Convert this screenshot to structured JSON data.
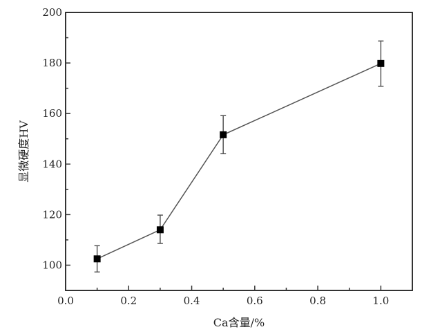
{
  "chart_data": {
    "type": "line",
    "title": "",
    "xlabel": "Ca含量/%",
    "ylabel": "显微硬度HV",
    "xlim": [
      0,
      1.1
    ],
    "ylim": [
      90,
      200
    ],
    "xticks": [
      "0.0",
      "0.2",
      "0.4",
      "0.6",
      "0.8",
      "1.0"
    ],
    "yticks": [
      "100",
      "120",
      "140",
      "160",
      "180",
      "200"
    ],
    "grid": false,
    "marker": "square",
    "line_color": "#555555",
    "marker_color": "#000000",
    "series": [
      {
        "x": [
          0.1,
          0.3,
          0.5,
          1.0
        ],
        "y": [
          102.5,
          114,
          151.6,
          179.8
        ],
        "err_upper": [
          107.7,
          119.8,
          159.2,
          188.7
        ],
        "err_lower": [
          97.3,
          108.6,
          144.1,
          170.8
        ]
      }
    ]
  }
}
